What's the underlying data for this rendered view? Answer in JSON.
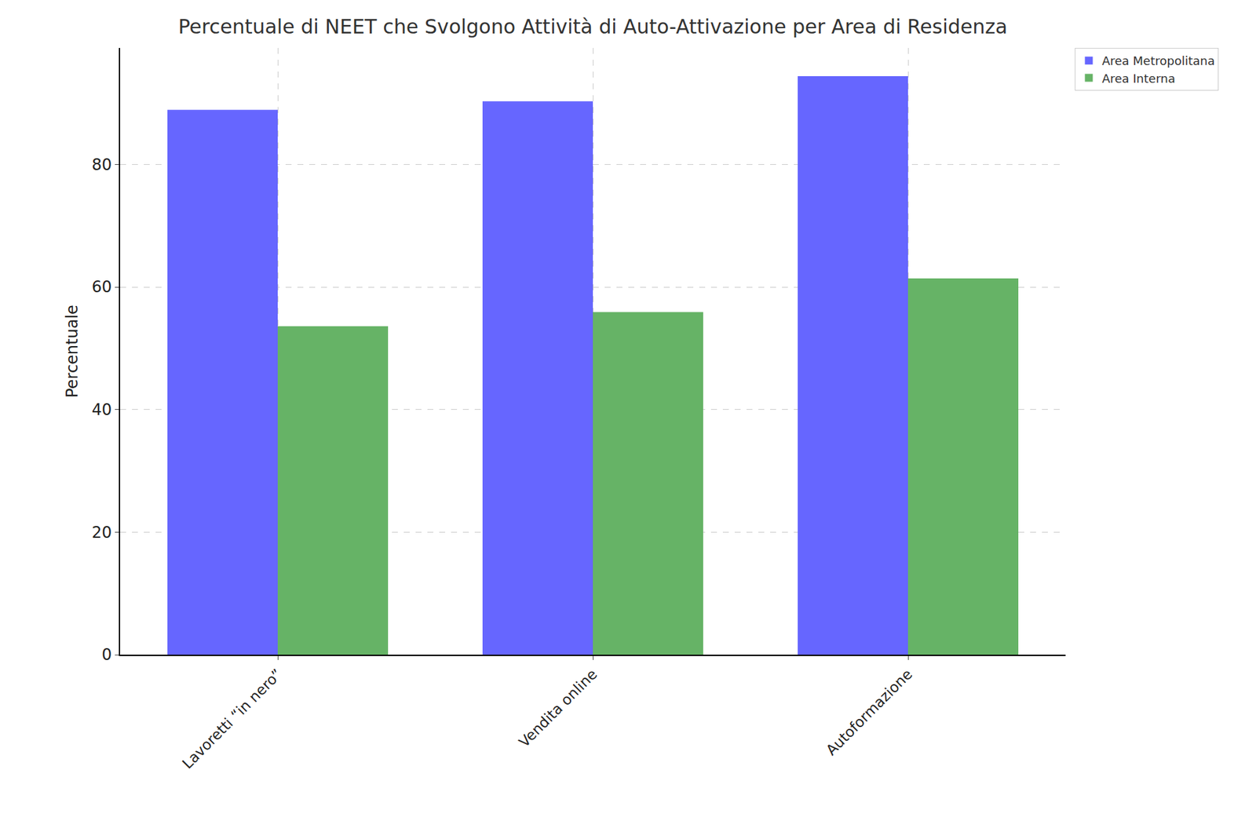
{
  "chart_data": {
    "type": "bar",
    "title": "Percentuale di NEET che Svolgono Attività di Auto-Attivazione per Area di Residenza",
    "y_label": "Percentuale",
    "categories": [
      "Lavoretti “in nero”",
      "Vendita online",
      "Autoformazione"
    ],
    "series": [
      {
        "name": "Area Metropolitana",
        "color": "#6666ff",
        "values": [
          88.9,
          90.3,
          94.4
        ]
      },
      {
        "name": "Area Interna",
        "color": "#66b366",
        "values": [
          53.6,
          55.9,
          61.4
        ]
      }
    ],
    "ylim": [
      0,
      99
    ],
    "yticks": [
      0,
      20,
      40,
      60,
      80
    ],
    "grid": true,
    "legend": "upper right"
  }
}
